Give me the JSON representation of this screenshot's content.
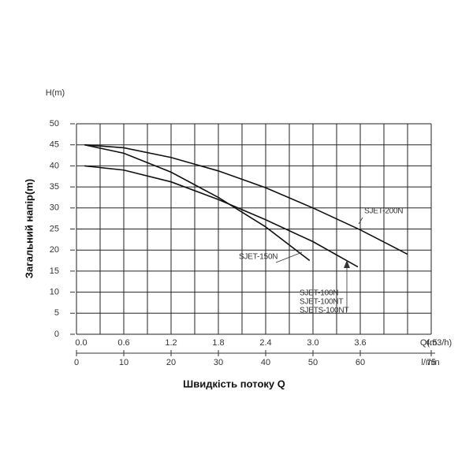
{
  "chart_data": {
    "type": "line",
    "y_label": "Загальний напір(m)",
    "y_unit": "H(m)",
    "x_label": "Швидкість потоку Q",
    "x_unit": "l/min",
    "x2_unit": "Q(m3/h)",
    "xlim": [
      0,
      75
    ],
    "xticks": [
      0,
      10,
      20,
      30,
      40,
      50,
      60,
      75
    ],
    "x2lim": [
      0,
      4.5
    ],
    "x2ticks": [
      {
        "value": 0,
        "label": "0.0"
      },
      0.6,
      1.2,
      1.8,
      2.4,
      {
        "value": 3,
        "label": "3.0"
      },
      3.6,
      4.5
    ],
    "ylim": [
      0,
      50
    ],
    "yticks": [
      0,
      5,
      10,
      15,
      20,
      25,
      30,
      35,
      40,
      45,
      50
    ],
    "x_grid": [
      0,
      5,
      10,
      15,
      20,
      25,
      30,
      35,
      40,
      45,
      50,
      55,
      60,
      65,
      70,
      75
    ],
    "grid": true,
    "series": [
      {
        "name": "SJET-200N",
        "color": "#111111",
        "x": [
          1.7,
          10,
          20,
          30,
          40,
          50,
          60,
          70
        ],
        "values": [
          45,
          44.3,
          42,
          38.8,
          34.8,
          30,
          24.8,
          19
        ]
      },
      {
        "name": "SJET-150N",
        "color": "#111111",
        "x": [
          1.7,
          10,
          20,
          30,
          40,
          49.3
        ],
        "values": [
          45,
          43,
          38.5,
          32.5,
          25.5,
          17.5
        ]
      },
      {
        "name": "SJET-100N",
        "other_names": [
          "SJET-100NT",
          "SJETS-100NT"
        ],
        "color": "#111111",
        "x": [
          1.7,
          10,
          20,
          30,
          40,
          50,
          59.5
        ],
        "values": [
          40,
          39,
          36.2,
          32,
          27.2,
          22,
          16
        ]
      }
    ]
  }
}
